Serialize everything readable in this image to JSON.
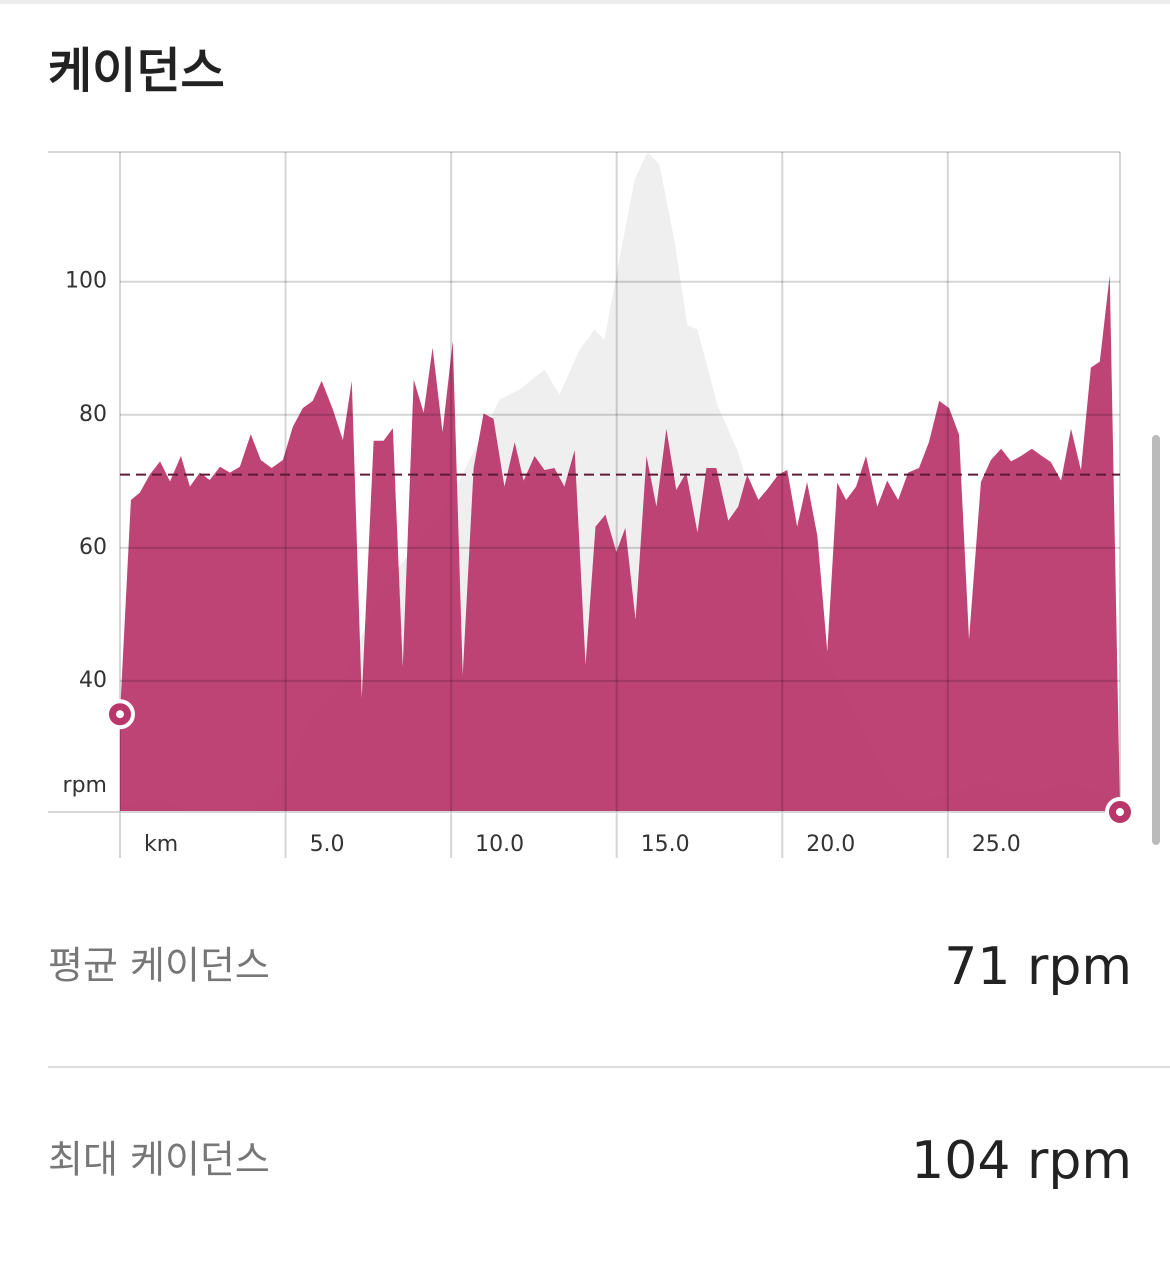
{
  "header": {
    "title": "케이던스"
  },
  "chart_data": {
    "type": "area",
    "series": [
      {
        "color": "#efefef",
        "x": [
          0,
          1.21,
          2.41,
          3.92,
          4.52,
          5.13,
          5.73,
          6.64,
          7.24,
          8.14,
          9.05,
          9.95,
          10.86,
          11.46,
          12.07,
          12.82,
          13.27,
          13.88,
          14.33,
          14.63,
          15.08,
          15.54,
          15.93,
          16.29,
          16.74,
          17.13,
          17.44,
          18.04,
          18.64,
          19.31,
          20.21,
          20.97,
          21.72,
          22.32,
          23.08,
          23.83,
          25.04,
          26.24,
          26.85,
          27.75,
          28.66,
          29.56,
          30.17
        ],
        "values": [
          21.4,
          22.1,
          20.3,
          20.3,
          22.9,
          26.6,
          34.1,
          38.6,
          46.2,
          55.2,
          61.2,
          67.2,
          76.2,
          82.3,
          83.8,
          86.8,
          83,
          89.8,
          92.8,
          91.3,
          103.3,
          115.3,
          119.5,
          117.6,
          106.3,
          93.5,
          92.8,
          81.5,
          74.7,
          64.2,
          55.2,
          44.7,
          40.2,
          34.1,
          25.9,
          22.1,
          22.9,
          25.1,
          22.9,
          23.6,
          24.4,
          23.6,
          20.3
        ]
      },
      {
        "color": "#b8366a",
        "x": [
          0,
          0.33,
          0.6,
          0.9,
          1.21,
          1.51,
          1.84,
          2.11,
          2.41,
          2.71,
          3.02,
          3.32,
          3.62,
          3.95,
          4.25,
          4.58,
          4.92,
          5.22,
          5.52,
          5.82,
          6.09,
          6.43,
          6.73,
          7.0,
          7.3,
          7.66,
          7.96,
          8.24,
          8.54,
          8.87,
          9.17,
          9.44,
          9.74,
          10.05,
          10.35,
          10.68,
          10.98,
          11.28,
          11.61,
          11.92,
          12.19,
          12.52,
          12.82,
          13.12,
          13.42,
          13.73,
          14.06,
          14.36,
          14.66,
          14.99,
          15.26,
          15.57,
          15.9,
          16.2,
          16.5,
          16.8,
          17.1,
          17.44,
          17.71,
          18.01,
          18.37,
          18.67,
          18.94,
          19.28,
          19.58,
          19.88,
          20.15,
          20.45,
          20.75,
          21.06,
          21.36,
          21.66,
          21.93,
          22.23,
          22.53,
          22.87,
          23.17,
          23.5,
          23.8,
          24.13,
          24.43,
          24.74,
          25.04,
          25.34,
          25.64,
          26.0,
          26.3,
          26.61,
          26.91,
          27.21,
          27.54,
          27.84,
          28.11,
          28.42,
          28.72,
          29.02,
          29.32,
          29.59,
          29.89,
          30.2
        ],
        "values": [
          35,
          67.2,
          68.3,
          71,
          73,
          70,
          73.8,
          69.2,
          71.3,
          70.2,
          72.2,
          71.3,
          72.2,
          77.1,
          73.2,
          72,
          73.2,
          78.2,
          81,
          82.1,
          85.1,
          80.8,
          76.2,
          85.1,
          37.4,
          76.1,
          76.1,
          78,
          42.1,
          85.3,
          80.3,
          90.1,
          77.4,
          91.1,
          40.9,
          72,
          80.2,
          79.4,
          69.2,
          75.9,
          70.1,
          73.8,
          71.7,
          72,
          69.2,
          74.7,
          42.4,
          63.2,
          65,
          59.4,
          63,
          49.2,
          73.8,
          66.2,
          77.9,
          68.7,
          71.3,
          62.3,
          72,
          72,
          64.1,
          66.2,
          71,
          67.2,
          69,
          71,
          71.7,
          63.2,
          69.9,
          61.8,
          44.4,
          69.8,
          67.2,
          69.2,
          73.8,
          66.2,
          70.1,
          67.2,
          71.3,
          72,
          75.9,
          82.1,
          81,
          77,
          46.2,
          69.9,
          73.2,
          74.9,
          73,
          73.8,
          74.9,
          73.8,
          72.9,
          70.1,
          77.9,
          71.7,
          87.1,
          88,
          101,
          20.3
        ]
      }
    ],
    "xlim": [
      0,
      30.2
    ],
    "xticks": [
      {
        "value": 0,
        "label": "km"
      },
      {
        "value": 5,
        "label": "5.0"
      },
      {
        "value": 10,
        "label": "10.0"
      },
      {
        "value": 15,
        "label": "15.0"
      },
      {
        "value": 20,
        "label": "20.0"
      },
      {
        "value": 25,
        "label": "25.0"
      }
    ],
    "ylim": [
      20.3,
      119.5
    ],
    "yticks": [
      40,
      60,
      80,
      100
    ],
    "y_label": "rpm",
    "average": 71,
    "average_color": "#5e1a36",
    "grid": true,
    "markers": true
  },
  "stats": [
    {
      "label": "평균 케이던스",
      "value_label": "71 rpm"
    },
    {
      "label": "최대 케이던스",
      "value_label": "104 rpm"
    }
  ]
}
